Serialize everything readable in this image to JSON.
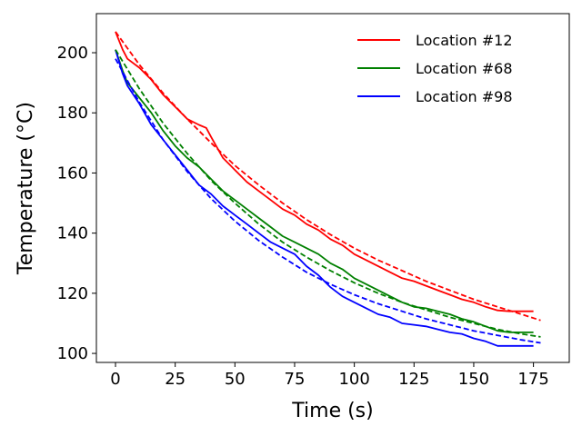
{
  "chart_data": {
    "type": "line",
    "title": "",
    "xlabel": "Time (s)",
    "ylabel": "Temperature (°C)",
    "xlim": [
      -8,
      190
    ],
    "ylim": [
      97,
      213
    ],
    "xticks": [
      0,
      25,
      50,
      75,
      100,
      125,
      150,
      175
    ],
    "yticks": [
      100,
      120,
      140,
      160,
      180,
      200
    ],
    "grid": false,
    "legend_position": "top-right",
    "series": [
      {
        "name": "Location #12",
        "color": "#ff0000",
        "style": "solid",
        "x": [
          0,
          3,
          5,
          10,
          15,
          20,
          25,
          30,
          35,
          38,
          40,
          45,
          50,
          55,
          60,
          65,
          70,
          75,
          80,
          85,
          90,
          95,
          100,
          105,
          110,
          115,
          120,
          125,
          130,
          135,
          140,
          145,
          150,
          155,
          160,
          165,
          170,
          175
        ],
        "y": [
          207,
          201,
          198,
          195,
          191,
          186,
          182,
          178,
          176,
          175,
          172,
          165,
          161,
          157,
          154,
          151,
          148,
          146,
          143,
          141,
          138,
          136,
          133,
          131,
          129,
          127,
          125,
          124,
          122.5,
          121,
          119.5,
          118,
          117,
          115.5,
          114.3,
          114,
          114,
          114
        ]
      },
      {
        "name": "Location #68",
        "color": "#008000",
        "style": "solid",
        "x": [
          0,
          3,
          5,
          10,
          15,
          20,
          25,
          30,
          35,
          40,
          45,
          50,
          55,
          60,
          65,
          70,
          75,
          80,
          85,
          90,
          95,
          100,
          105,
          110,
          115,
          120,
          125,
          130,
          135,
          140,
          145,
          150,
          155,
          160,
          165,
          170,
          175
        ],
        "y": [
          201,
          194,
          190,
          185,
          180,
          174,
          169,
          165,
          162,
          158,
          154,
          151,
          148,
          145,
          142,
          139,
          137,
          135,
          133,
          130,
          128,
          125,
          123,
          121,
          119,
          117,
          115.5,
          115,
          114,
          113,
          111.5,
          110.5,
          109,
          107.5,
          107,
          107,
          107
        ]
      },
      {
        "name": "Location #98",
        "color": "#0000ff",
        "style": "solid",
        "x": [
          0,
          3,
          5,
          10,
          15,
          20,
          25,
          30,
          35,
          40,
          45,
          50,
          55,
          60,
          65,
          70,
          75,
          80,
          85,
          90,
          95,
          100,
          105,
          110,
          115,
          120,
          125,
          130,
          135,
          140,
          145,
          150,
          155,
          160,
          165,
          170,
          175
        ],
        "y": [
          201,
          193,
          189,
          183,
          176,
          171,
          166,
          161,
          156,
          153,
          149,
          146,
          143,
          140,
          137,
          135,
          133,
          129,
          126,
          122,
          119,
          117,
          115,
          113,
          112,
          110,
          109.5,
          109,
          108,
          107,
          106.5,
          105,
          104,
          102.5,
          102.5,
          102.5,
          102.5
        ]
      },
      {
        "name": "",
        "color": "#ff0000",
        "style": "dashed",
        "x": [
          0,
          10,
          20,
          30,
          40,
          50,
          60,
          70,
          80,
          90,
          100,
          110,
          120,
          130,
          140,
          150,
          160,
          170,
          178
        ],
        "y": [
          207,
          196,
          186.5,
          178,
          170,
          162.5,
          156,
          150,
          144.5,
          139.5,
          135,
          131,
          127.5,
          124,
          121,
          118,
          115.5,
          113,
          111
        ]
      },
      {
        "name": "",
        "color": "#008000",
        "style": "dashed",
        "x": [
          0,
          10,
          20,
          30,
          40,
          50,
          60,
          70,
          80,
          90,
          100,
          110,
          120,
          130,
          140,
          150,
          160,
          170,
          178
        ],
        "y": [
          201,
          188,
          176.5,
          166.5,
          157.5,
          150,
          143,
          137,
          132,
          127.5,
          123.5,
          120,
          117,
          114.5,
          112,
          110,
          108,
          106.5,
          105.5
        ]
      },
      {
        "name": "",
        "color": "#0000ff",
        "style": "dashed",
        "x": [
          0,
          10,
          20,
          30,
          40,
          50,
          60,
          70,
          80,
          90,
          100,
          110,
          120,
          130,
          140,
          150,
          160,
          170,
          178
        ],
        "y": [
          198,
          183.5,
          171,
          160.5,
          151.5,
          144,
          137.5,
          132,
          127,
          123,
          119.5,
          116.5,
          114,
          111.5,
          109.5,
          107.5,
          106,
          104.5,
          103.5
        ]
      }
    ]
  }
}
